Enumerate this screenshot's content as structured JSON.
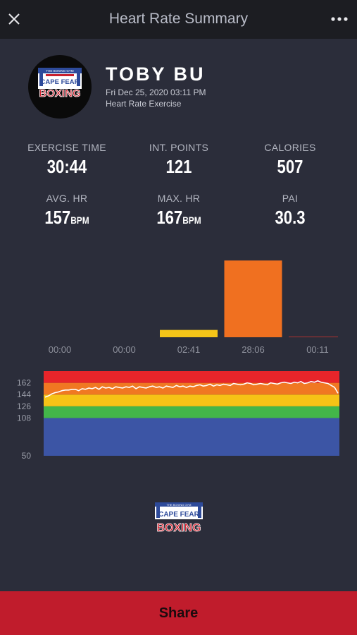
{
  "header": {
    "title": "Heart Rate Summary"
  },
  "profile": {
    "name": "TOBY BU",
    "date": "Fri Dec 25, 2020 03:11 PM",
    "workout": "Heart Rate Exercise",
    "logo": {
      "top": "CAPE FEAR",
      "bottom": "BOXING",
      "banner": "THE BOXING GYM"
    }
  },
  "stats": [
    {
      "label": "EXERCISE TIME",
      "value": "30:44",
      "unit": ""
    },
    {
      "label": "INT. POINTS",
      "value": "121",
      "unit": ""
    },
    {
      "label": "CALORIES",
      "value": "507",
      "unit": ""
    },
    {
      "label": "AVG. HR",
      "value": "157",
      "unit": "BPM"
    },
    {
      "label": "MAX. HR",
      "value": "167",
      "unit": "BPM"
    },
    {
      "label": "PAI",
      "value": "30.3",
      "unit": ""
    }
  ],
  "chart_data": [
    {
      "type": "bar",
      "categories": [
        "00:00",
        "00:00",
        "02:41",
        "28:06",
        "00:11"
      ],
      "values": [
        0,
        0,
        2.68,
        28.1,
        0.18
      ],
      "colors": [
        "#f5c518",
        "#f5c518",
        "#f5c518",
        "#f07020",
        "#e8332c"
      ],
      "ylim": [
        0,
        31
      ]
    },
    {
      "type": "line",
      "ytick_labels": [
        "162",
        "144",
        "126",
        "108",
        "50"
      ],
      "zones": [
        {
          "from": 50,
          "to": 108,
          "color": "#3c55a5"
        },
        {
          "from": 108,
          "to": 126,
          "color": "#43b649"
        },
        {
          "from": 126,
          "to": 144,
          "color": "#f6c316"
        },
        {
          "from": 144,
          "to": 162,
          "color": "#f07822"
        },
        {
          "from": 162,
          "to": 180,
          "color": "#e8252a"
        }
      ],
      "ylim": [
        50,
        180
      ],
      "series": [
        {
          "values": [
            140,
            142,
            145,
            147,
            148,
            150,
            151,
            151,
            152,
            152,
            150,
            153,
            152,
            154,
            153,
            155,
            152,
            156,
            154,
            155,
            153,
            156,
            155,
            154,
            156,
            155,
            157,
            153,
            156,
            155,
            154,
            156,
            157,
            155,
            156,
            154,
            157,
            156,
            155,
            158,
            156,
            157,
            155,
            157,
            156,
            158,
            159,
            157,
            158,
            160,
            157,
            159,
            158,
            160,
            159,
            158,
            161,
            160,
            159,
            160,
            162,
            161,
            159,
            160,
            161,
            160,
            159,
            162,
            161,
            160,
            162,
            163,
            162,
            161,
            163,
            162,
            164,
            161,
            162,
            164,
            163,
            165,
            163,
            162,
            161,
            158,
            155,
            146
          ],
          "color": "#ffffff"
        }
      ]
    }
  ],
  "share": {
    "label": "Share"
  }
}
